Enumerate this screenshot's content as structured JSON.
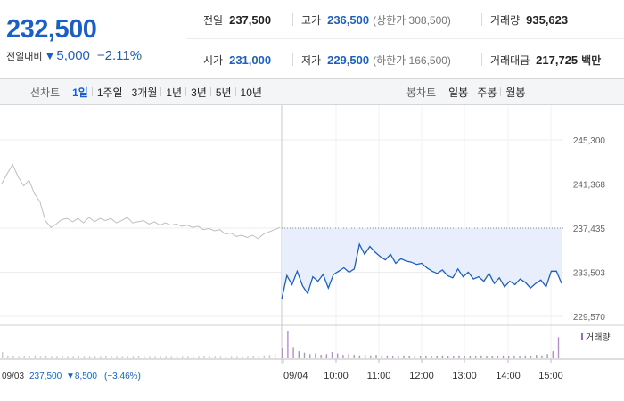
{
  "summary": {
    "price": "232,500",
    "change_label": "전일대비",
    "change_arrow": "▼",
    "change_amount": "5,000",
    "change_pct": "−2.11%"
  },
  "stats": {
    "prev_label": "전일",
    "prev_value": "237,500",
    "high_label": "고가",
    "high_value": "236,500",
    "high_sub": "(상한가 308,500)",
    "volume_label": "거래량",
    "volume_value": "935,623",
    "open_label": "시가",
    "open_value": "231,000",
    "low_label": "저가",
    "low_value": "229,500",
    "low_sub": "(하한가 166,500)",
    "amount_label": "거래대금",
    "amount_value": "217,725",
    "amount_unit": "백만"
  },
  "toolbar": {
    "line_label": "선차트",
    "periods": [
      "1일",
      "1주일",
      "3개월",
      "1년",
      "3년",
      "5년",
      "10년"
    ],
    "active_period": "1일",
    "candle_label": "봉차트",
    "candles": [
      "일봉",
      "주봉",
      "월봉"
    ]
  },
  "colors": {
    "up": "#d6262a",
    "down": "#1a5fc8",
    "prev_line": "#bfbfbf",
    "fill": "#e8eefb",
    "volume": "#b48fc8"
  },
  "chart_data": {
    "type": "line",
    "y_ticks": [
      "245,300",
      "241,368",
      "237,435",
      "233,503",
      "229,570"
    ],
    "ylim": [
      229570,
      245300
    ],
    "reference_value": 237435,
    "x_ticks": [
      "09/04",
      "10:00",
      "11:00",
      "12:00",
      "13:00",
      "14:00",
      "15:00"
    ],
    "prev_day": {
      "date": "09/03",
      "close": "237,500",
      "change": "▼8,500",
      "change_pct": "(−3.46%)",
      "values": [
        241400,
        242300,
        243100,
        242000,
        241200,
        241700,
        240500,
        239800,
        238100,
        237500,
        237800,
        238200,
        238300,
        238000,
        238300,
        237900,
        238400,
        238000,
        238300,
        238100,
        238300,
        237900,
        238100,
        238400,
        237900,
        238000,
        238100,
        237800,
        238000,
        237700,
        237900,
        237700,
        237800,
        237600,
        237700,
        237500,
        237600,
        237300,
        237400,
        237200,
        237300,
        236900,
        237000,
        236700,
        236800,
        236600,
        236800,
        236500,
        236900,
        237100,
        237300,
        237500
      ]
    },
    "series": [
      {
        "name": "",
        "values": [
          231100,
          233200,
          232400,
          233600,
          232300,
          231600,
          233100,
          232700,
          233300,
          232100,
          233300,
          233600,
          233900,
          233500,
          233800,
          236000,
          235100,
          235800,
          235300,
          234900,
          234600,
          235100,
          234300,
          234700,
          234500,
          234400,
          234200,
          234300,
          233900,
          233600,
          233400,
          233700,
          233200,
          233000,
          233800,
          233100,
          233500,
          232900,
          233100,
          232700,
          233400,
          232500,
          233000,
          232200,
          232700,
          232400,
          232900,
          232600,
          232100,
          232500,
          232800,
          232200,
          233600,
          233600,
          232500
        ]
      }
    ],
    "volume_label": "거래량",
    "volume": [
      9,
      4,
      3,
      2,
      3,
      2,
      4,
      2,
      3,
      2,
      2,
      3,
      2,
      2,
      3,
      2,
      2,
      2,
      2,
      3,
      2,
      2,
      2,
      2,
      2,
      3,
      2,
      2,
      2,
      2,
      2,
      2,
      3,
      2,
      2,
      2,
      2,
      3,
      2,
      2,
      2,
      2,
      2,
      2,
      2,
      2,
      3,
      2,
      4,
      5,
      6,
      14,
      38,
      16,
      10,
      8,
      6,
      7,
      5,
      6,
      9,
      7,
      5,
      6,
      5,
      4,
      5,
      4,
      5,
      4,
      4,
      3,
      4,
      4,
      3,
      4,
      3,
      4,
      3,
      3,
      4,
      3,
      3,
      4,
      3,
      3,
      3,
      4,
      3,
      3,
      3,
      4,
      3,
      4,
      3,
      4,
      3,
      5,
      4,
      6,
      10,
      30
    ]
  }
}
